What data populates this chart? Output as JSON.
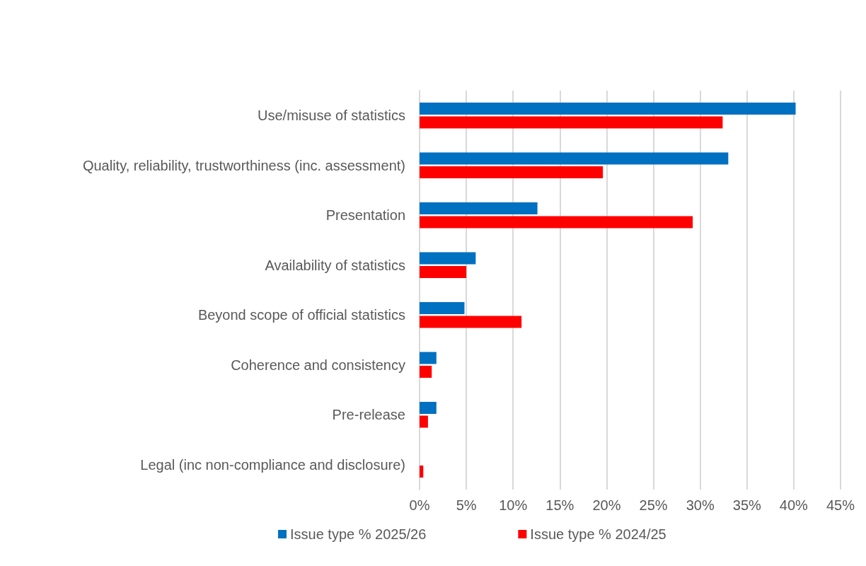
{
  "chart_data": {
    "type": "bar",
    "orientation": "horizontal",
    "categories": [
      "Use/misuse of statistics",
      "Quality, reliability, trustworthiness (inc. assessment)",
      "Presentation",
      "Availability of statistics",
      "Beyond scope of official statistics",
      "Coherence and consistency",
      "Pre-release",
      "Legal (inc non-compliance and disclosure)"
    ],
    "series": [
      {
        "name": "Issue type % 2025/26",
        "color": "#0070c0",
        "values": [
          40.2,
          33.0,
          12.6,
          6.0,
          4.8,
          1.8,
          1.8,
          0
        ]
      },
      {
        "name": "Issue type % 2024/25",
        "color": "#ff0000",
        "values": [
          32.4,
          19.6,
          29.2,
          5.0,
          10.9,
          1.3,
          0.9,
          0.4
        ]
      }
    ],
    "xlim": [
      0,
      45
    ],
    "xticks": [
      {
        "value": 0,
        "label": "0%"
      },
      {
        "value": 5,
        "label": "5%"
      },
      {
        "value": 10,
        "label": "10%"
      },
      {
        "value": 15,
        "label": "15%"
      },
      {
        "value": 20,
        "label": "20%"
      },
      {
        "value": 25,
        "label": "25%"
      },
      {
        "value": 30,
        "label": "30%"
      },
      {
        "value": 35,
        "label": "35%"
      },
      {
        "value": 40,
        "label": "40%"
      },
      {
        "value": 45,
        "label": "45%"
      }
    ],
    "grid": "x",
    "legend": "bottom"
  }
}
